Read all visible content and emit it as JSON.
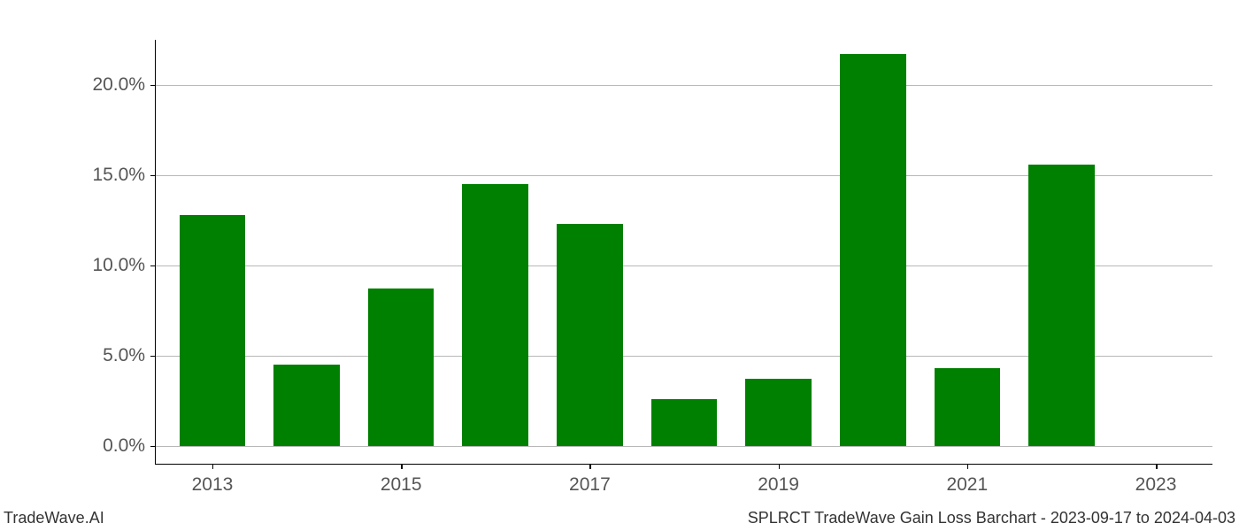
{
  "footer": {
    "left": "TradeWave.AI",
    "right": "SPLRCT TradeWave Gain Loss Barchart - 2023-09-17 to 2024-04-03"
  },
  "chart": {
    "type": "bar",
    "background_color": "#ffffff",
    "grid_color": "#b8b8b8",
    "axis_color": "#000000",
    "tick_label_color": "#555555",
    "tick_label_fontsize": 21,
    "footer_fontsize": 18,
    "bar_color": "#008000",
    "bar_width": 0.7,
    "y_axis": {
      "min": -1.0,
      "max": 22.5,
      "ticks": [
        0.0,
        5.0,
        10.0,
        15.0,
        20.0
      ],
      "tick_labels": [
        "0.0%",
        "5.0%",
        "10.0%",
        "15.0%",
        "20.0%"
      ]
    },
    "x_axis": {
      "min": 2012.4,
      "max": 2023.6,
      "ticks": [
        2013,
        2015,
        2017,
        2019,
        2021,
        2023
      ],
      "tick_labels": [
        "2013",
        "2015",
        "2017",
        "2019",
        "2021",
        "2023"
      ]
    },
    "data": {
      "years": [
        2013,
        2014,
        2015,
        2016,
        2017,
        2018,
        2019,
        2020,
        2021,
        2022,
        2023
      ],
      "values": [
        12.8,
        4.5,
        8.7,
        14.5,
        12.3,
        2.6,
        3.7,
        21.7,
        4.3,
        15.6,
        0.0
      ]
    }
  }
}
